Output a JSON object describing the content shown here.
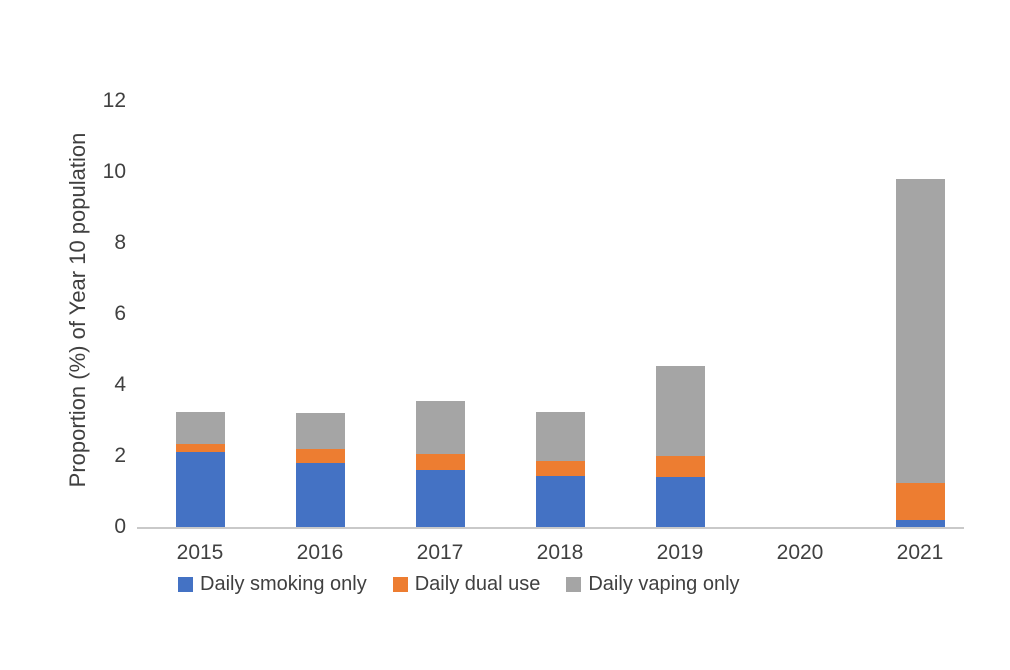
{
  "chart_data": {
    "type": "bar",
    "stacked": true,
    "title": "",
    "categories": [
      "2015",
      "2016",
      "2017",
      "2018",
      "2019",
      "2020",
      "2021"
    ],
    "series": [
      {
        "name": "Daily smoking only",
        "color": "#4472C4",
        "values": [
          2.1,
          1.8,
          1.6,
          1.45,
          1.4,
          0,
          0.2
        ]
      },
      {
        "name": "Daily dual use",
        "color": "#ED7D31",
        "values": [
          0.25,
          0.4,
          0.45,
          0.4,
          0.6,
          0,
          1.05
        ]
      },
      {
        "name": "Daily vaping only",
        "color": "#A5A5A5",
        "values": [
          0.9,
          1.0,
          1.5,
          1.4,
          2.55,
          0,
          8.55
        ]
      }
    ],
    "totals": [
      3.25,
      3.2,
      3.55,
      3.25,
      4.55,
      0,
      9.8
    ],
    "xlabel": "",
    "ylabel": "Proportion (%) of Year 10 population",
    "ylim": [
      0,
      12
    ],
    "yticks": [
      0,
      2,
      4,
      6,
      8,
      10,
      12
    ],
    "grid": false,
    "legend_position": "bottom",
    "axis_line_color": "#c9c9c9",
    "text_color": "#404040",
    "background_color": "#ffffff"
  }
}
